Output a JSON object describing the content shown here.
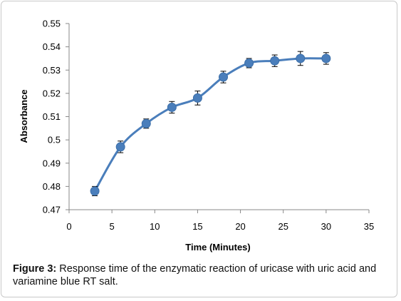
{
  "chart_data": {
    "type": "line",
    "xlabel": "Time (Minutes)",
    "ylabel": "Absorbance",
    "xlim": [
      0,
      35
    ],
    "ylim": [
      0.47,
      0.55
    ],
    "xticks": [
      "0",
      "5",
      "10",
      "15",
      "20",
      "25",
      "30",
      "35"
    ],
    "yticks": [
      "0.47",
      "0.48",
      "0.49",
      "0.5",
      "0.51",
      "0.52",
      "0.53",
      "0.54",
      "0.55"
    ],
    "grid": false,
    "series": [
      {
        "color": "#4a7ebb",
        "x": [
          3,
          6,
          9,
          12,
          15,
          18,
          21,
          24,
          27,
          30
        ],
        "y": [
          0.478,
          0.497,
          0.507,
          0.514,
          0.518,
          0.527,
          0.533,
          0.534,
          0.535,
          0.535
        ],
        "error": [
          0.002,
          0.0025,
          0.002,
          0.0025,
          0.003,
          0.0025,
          0.002,
          0.0025,
          0.003,
          0.0025
        ]
      }
    ]
  },
  "caption": {
    "label": "Figure 3:",
    "text": " Response time of the enzymatic reaction of uricase with uric acid and variamine blue RT salt."
  }
}
